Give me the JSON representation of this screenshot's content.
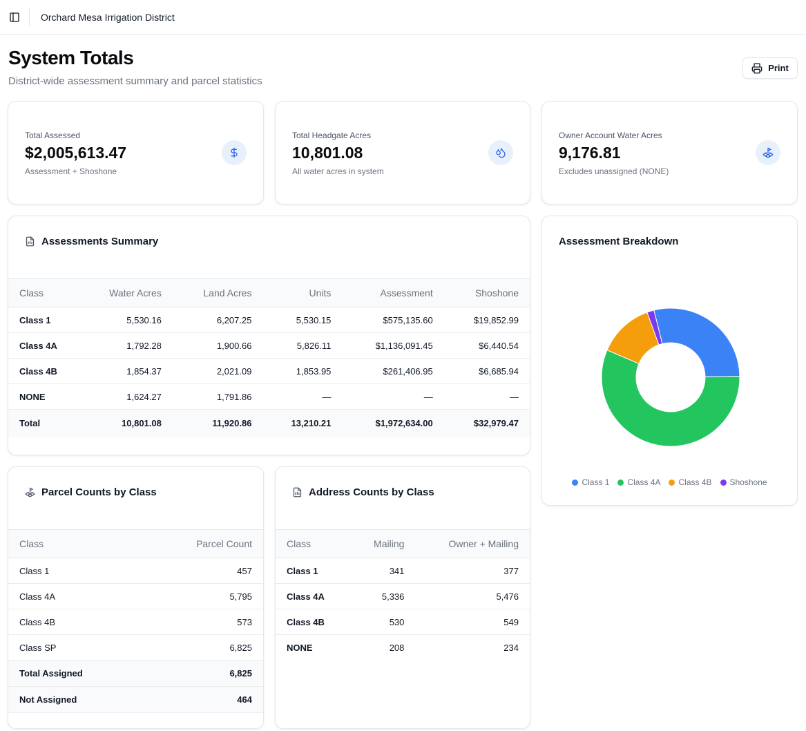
{
  "app": {
    "title": "Orchard Mesa Irrigation District"
  },
  "header": {
    "title": "System Totals",
    "subtitle": "District-wide assessment summary and parcel statistics",
    "print_label": "Print"
  },
  "stats": [
    {
      "label": "Total Assessed",
      "value": "$2,005,613.47",
      "sub": "Assessment + Shoshone",
      "icon": "dollar-icon"
    },
    {
      "label": "Total Headgate Acres",
      "value": "10,801.08",
      "sub": "All water acres in system",
      "icon": "droplets-icon"
    },
    {
      "label": "Owner Account Water Acres",
      "value": "9,176.81",
      "sub": "Excludes unassigned (NONE)",
      "icon": "land-plot-icon"
    }
  ],
  "assessments": {
    "title": "Assessments Summary",
    "columns": [
      "Class",
      "Water Acres",
      "Land Acres",
      "Units",
      "Assessment",
      "Shoshone"
    ],
    "rows": [
      [
        "Class 1",
        "5,530.16",
        "6,207.25",
        "5,530.15",
        "$575,135.60",
        "$19,852.99"
      ],
      [
        "Class 4A",
        "1,792.28",
        "1,900.66",
        "5,826.11",
        "$1,136,091.45",
        "$6,440.54"
      ],
      [
        "Class 4B",
        "1,854.37",
        "2,021.09",
        "1,853.95",
        "$261,406.95",
        "$6,685.94"
      ],
      [
        "NONE",
        "1,624.27",
        "1,791.86",
        "—",
        "—",
        "—"
      ]
    ],
    "total": [
      "Total",
      "10,801.08",
      "11,920.86",
      "13,210.21",
      "$1,972,634.00",
      "$32,979.47"
    ]
  },
  "parcels": {
    "title": "Parcel Counts by Class",
    "columns": [
      "Class",
      "Parcel Count"
    ],
    "rows": [
      [
        "Class 1",
        "457"
      ],
      [
        "Class 4A",
        "5,795"
      ],
      [
        "Class 4B",
        "573"
      ],
      [
        "Class SP",
        "6,825"
      ]
    ],
    "totals": [
      [
        "Total Assigned",
        "6,825"
      ],
      [
        "Not Assigned",
        "464"
      ]
    ]
  },
  "addresses": {
    "title": "Address Counts by Class",
    "columns": [
      "Class",
      "Mailing",
      "Owner + Mailing"
    ],
    "rows": [
      [
        "Class 1",
        "341",
        "377"
      ],
      [
        "Class 4A",
        "5,336",
        "5,476"
      ],
      [
        "Class 4B",
        "530",
        "549"
      ],
      [
        "NONE",
        "208",
        "234"
      ]
    ]
  },
  "breakdown": {
    "title": "Assessment Breakdown"
  },
  "chart_data": {
    "type": "pie",
    "title": "Assessment Breakdown",
    "donut": true,
    "legend_position": "bottom",
    "categories": [
      "Class 1",
      "Class 4A",
      "Class 4B",
      "Shoshone"
    ],
    "values": [
      575135.6,
      1136091.45,
      261406.95,
      32979.47
    ],
    "colors": [
      "#3b82f6",
      "#22c55e",
      "#f59e0b",
      "#7c3aed"
    ]
  }
}
